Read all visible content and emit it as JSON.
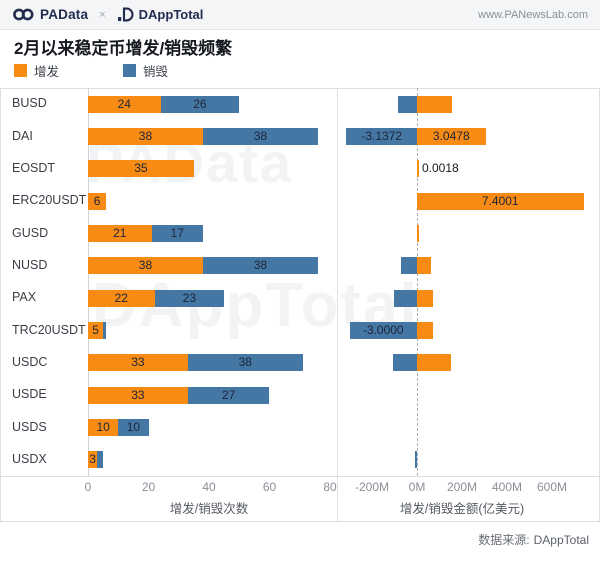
{
  "header": {
    "brand": "PAData",
    "separator": "×",
    "partner": "DAppTotal",
    "website": "www.PANewsLab.com"
  },
  "title": "2月以来稳定币增发/销毁频繁",
  "legend": [
    {
      "label": "增发",
      "color": "#F78B13"
    },
    {
      "label": "销毁",
      "color": "#4577A5"
    }
  ],
  "watermarks": [
    {
      "text": "PAData"
    },
    {
      "text": "DAppTotal"
    }
  ],
  "footer": {
    "label": "数据来源:",
    "value": "DAppTotal"
  },
  "colors": {
    "issue": "#F78B13",
    "destroy": "#4577A5"
  },
  "chart_data": [
    {
      "type": "bar",
      "orientation": "horizontal",
      "stacked": true,
      "xlabel": "增发/销毁次数",
      "xticks": [
        0,
        20,
        40,
        60,
        80
      ],
      "xlim": [
        0,
        80
      ],
      "categories": [
        "BUSD",
        "DAI",
        "EOSDT",
        "ERC20USDT",
        "GUSD",
        "NUSD",
        "PAX",
        "TRC20USDT",
        "USDC",
        "USDE",
        "USDS",
        "USDX"
      ],
      "series": [
        {
          "name": "增发",
          "values": [
            24,
            38,
            35,
            6,
            21,
            38,
            22,
            5,
            33,
            33,
            10,
            3
          ]
        },
        {
          "name": "销毁",
          "values": [
            26,
            38,
            0,
            0,
            17,
            38,
            23,
            1,
            38,
            27,
            10,
            2
          ]
        }
      ]
    },
    {
      "type": "bar",
      "orientation": "horizontal",
      "diverging": true,
      "xlabel": "增发/销毁金额(亿美元)",
      "xtick_labels": [
        "-200M",
        "0M",
        "200M",
        "400M",
        "600M"
      ],
      "xtick_values_M": [
        -200,
        0,
        200,
        400,
        600
      ],
      "categories": [
        "BUSD",
        "DAI",
        "EOSDT",
        "ERC20USDT",
        "GUSD",
        "NUSD",
        "PAX",
        "TRC20USDT",
        "USDC",
        "USDE",
        "USDS",
        "USDX"
      ],
      "series": [
        {
          "name": "增发",
          "values_M": [
            155,
            304.78,
            0.18,
            740.01,
            8,
            60,
            70,
            72,
            152,
            0,
            0,
            0
          ],
          "labels": [
            "",
            "3.0478",
            "0.0018",
            "7.4001",
            "",
            "",
            "",
            "",
            "",
            "",
            "",
            ""
          ]
        },
        {
          "name": "销毁",
          "values_M": [
            -85,
            -313.72,
            0,
            0,
            0,
            -70,
            -102,
            -300,
            -107,
            0,
            0,
            -10
          ],
          "labels": [
            "",
            "-3.1372",
            "",
            "",
            "",
            "",
            "",
            "-3.0000",
            "",
            "",
            "",
            ""
          ]
        }
      ],
      "label_outside_rows": [
        2
      ]
    }
  ]
}
